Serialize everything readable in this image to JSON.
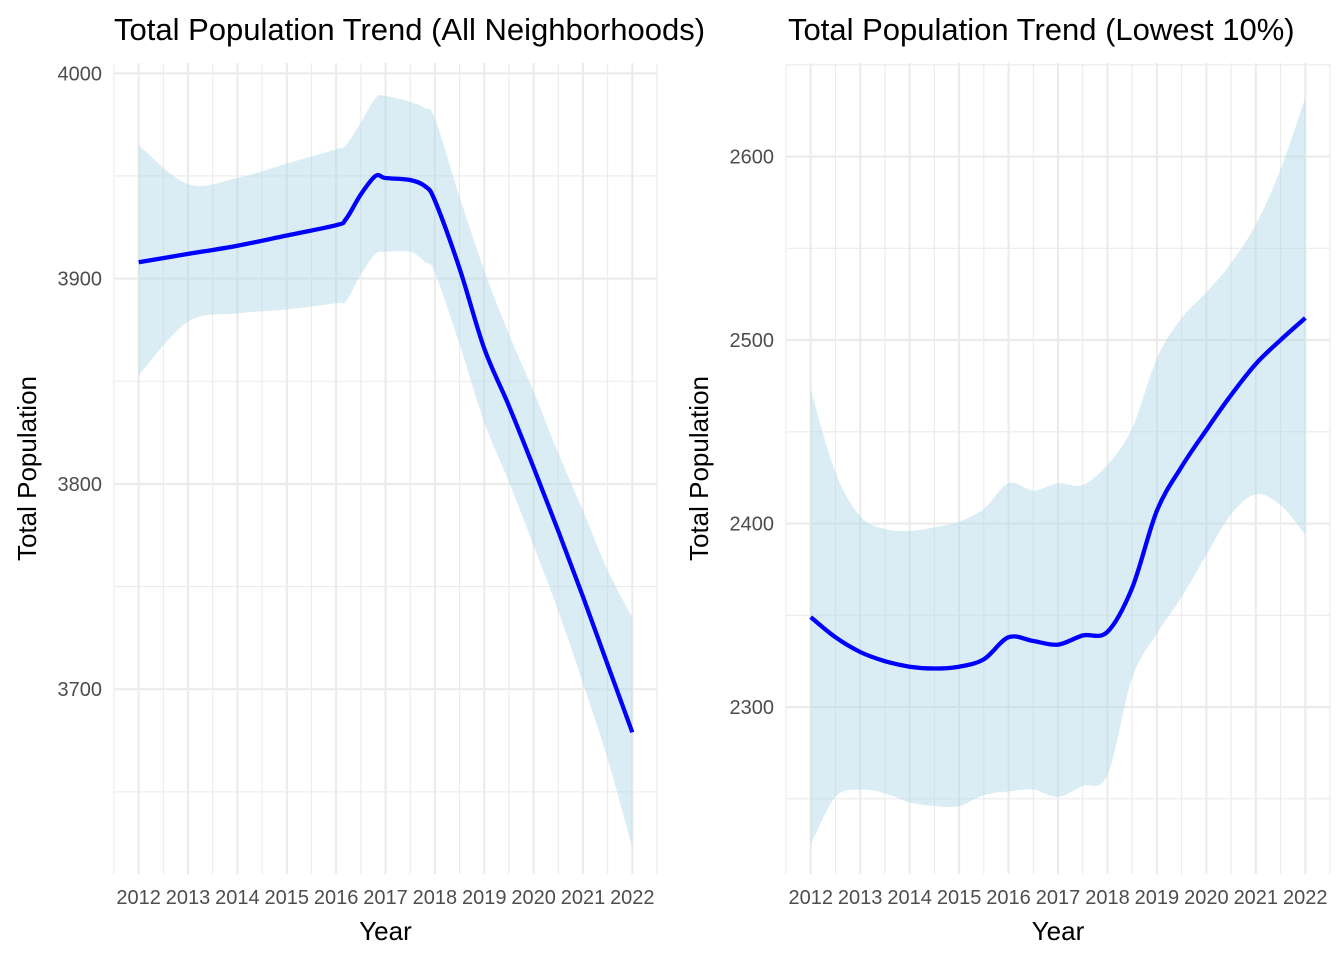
{
  "chart_data": [
    {
      "type": "line",
      "title": "Total Population Trend (All Neighborhoods)",
      "xlabel": "Year",
      "ylabel": "Total Population",
      "x_ticks": [
        "2012",
        "2013",
        "2014",
        "2015",
        "2016",
        "2017",
        "2018",
        "2019",
        "2020",
        "2021",
        "2022"
      ],
      "y_ticks": [
        "3700",
        "3800",
        "3900",
        "4000"
      ],
      "xlim": [
        2011.5,
        2022.5
      ],
      "ylim": [
        3610,
        4005
      ],
      "grid": true,
      "legend": "none",
      "colors": {
        "line": "#0000ff",
        "band": "#add8e6"
      },
      "series": [
        {
          "x": [
            2012,
            2013,
            2014,
            2015,
            2016,
            2016.2,
            2016.5,
            2016.8,
            2017,
            2017.5,
            2017.8,
            2018,
            2018.5,
            2019,
            2019.5,
            2020,
            2020.5,
            2021,
            2021.5,
            2022
          ],
          "values": [
            3908,
            3912,
            3916,
            3921,
            3926,
            3929,
            3941,
            3950,
            3949,
            3948,
            3945,
            3938,
            3905,
            3866,
            3838,
            3808,
            3777,
            3745,
            3712,
            3679
          ],
          "lower": [
            3853,
            3879,
            3883,
            3885,
            3888,
            3889,
            3902,
            3912,
            3913,
            3913,
            3908,
            3903,
            3868,
            3830,
            3801,
            3770,
            3738,
            3703,
            3666,
            3623
          ],
          "upper": [
            3965,
            3946,
            3949,
            3956,
            3963,
            3965,
            3976,
            3988,
            3989,
            3986,
            3983,
            3978,
            3940,
            3904,
            3873,
            3845,
            3815,
            3787,
            3758,
            3735
          ]
        }
      ]
    },
    {
      "type": "line",
      "title": "Total Population Trend (Lowest 10%)",
      "xlabel": "Year",
      "ylabel": "Total Population",
      "x_ticks": [
        "2012",
        "2013",
        "2014",
        "2015",
        "2016",
        "2017",
        "2018",
        "2019",
        "2020",
        "2021",
        "2022"
      ],
      "y_ticks": [
        "2300",
        "2400",
        "2500",
        "2600"
      ],
      "xlim": [
        2011.5,
        2022.5
      ],
      "ylim": [
        2209,
        2651
      ],
      "grid": true,
      "legend": "none",
      "colors": {
        "line": "#0000ff",
        "band": "#add8e6"
      },
      "series": [
        {
          "x": [
            2012,
            2012.5,
            2013,
            2013.5,
            2014,
            2014.5,
            2015,
            2015.5,
            2016,
            2016.5,
            2017,
            2017.5,
            2018,
            2018.5,
            2019,
            2019.5,
            2020,
            2020.5,
            2021,
            2021.5,
            2022
          ],
          "values": [
            2349,
            2338,
            2330,
            2325,
            2322,
            2321,
            2322,
            2326,
            2338,
            2336,
            2334,
            2339,
            2341,
            2365,
            2407,
            2431,
            2451,
            2470,
            2487,
            2500,
            2512
          ],
          "lower": [
            2225,
            2251,
            2255,
            2253,
            2248,
            2246,
            2246,
            2252,
            2254,
            2255,
            2251,
            2257,
            2263,
            2316,
            2340,
            2360,
            2383,
            2405,
            2416,
            2410,
            2394
          ],
          "upper": [
            2473,
            2428,
            2404,
            2397,
            2396,
            2398,
            2401,
            2408,
            2422,
            2418,
            2422,
            2421,
            2432,
            2452,
            2490,
            2512,
            2526,
            2542,
            2563,
            2593,
            2632
          ]
        }
      ]
    }
  ]
}
